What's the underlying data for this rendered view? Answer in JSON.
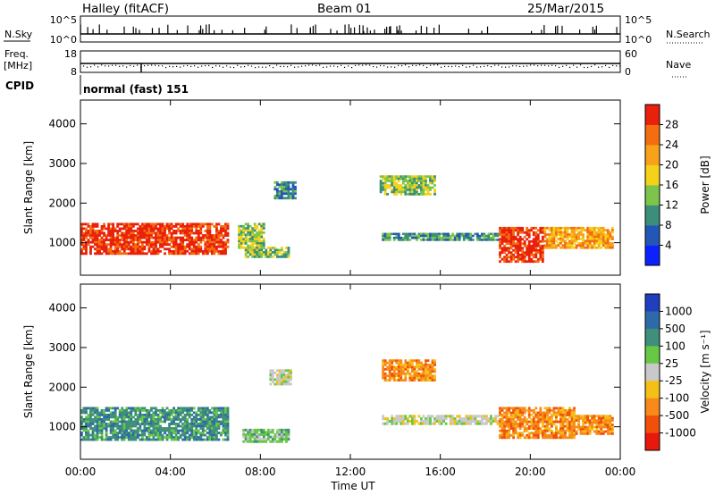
{
  "header": {
    "station": "Halley (fitACF)",
    "beam": "Beam 01",
    "date": "25/Mar/2015"
  },
  "noise_panel": {
    "left_label": "N.Sky",
    "right_label": "N.Search",
    "left_ticks": [
      "10^5",
      "10^0"
    ],
    "right_ticks": [
      "10^5",
      "10^0"
    ]
  },
  "freq_panel": {
    "left_label_1": "Freq.",
    "left_label_2": "[MHz]",
    "left_ticks": [
      "18",
      "8"
    ],
    "right_label": "Nave",
    "right_ticks": [
      "60",
      "0"
    ]
  },
  "cpid": {
    "label": "CPID",
    "value": "normal (fast) 151"
  },
  "x_axis": {
    "title": "Time UT",
    "ticks": [
      "00:00",
      "04:00",
      "08:00",
      "12:00",
      "16:00",
      "20:00",
      "00:00"
    ]
  },
  "y_axis": {
    "title": "Slant Range [km]",
    "ticks": [
      "1000",
      "2000",
      "3000",
      "4000"
    ]
  },
  "power_scale": {
    "title": "Power [dB]",
    "labels": [
      "4",
      "8",
      "12",
      "16",
      "20",
      "24",
      "28"
    ],
    "colors": [
      "#0b22ff",
      "#2456b8",
      "#3b8f7a",
      "#7cc54a",
      "#f5d21a",
      "#f7a21a",
      "#f46e10",
      "#e8200c"
    ]
  },
  "velocity_scale": {
    "title": "Velocity [m s⁻¹]",
    "labels": [
      "1000",
      "500",
      "100",
      "25",
      "-25",
      "-100",
      "-500",
      "-1000"
    ],
    "colors": [
      "#1f3fbf",
      "#2e6aa8",
      "#3f8f7a",
      "#66c845",
      "#c9c9c9",
      "#f4c016",
      "#f78a1a",
      "#f0500c",
      "#e8180c"
    ]
  },
  "chart_data": [
    {
      "type": "heatmap",
      "title": "Power [dB]",
      "xlabel": "Time UT",
      "ylabel": "Slant Range [km]",
      "xlim": [
        0,
        24
      ],
      "ylim": [
        180,
        4600
      ],
      "colorbar": [
        4,
        8,
        12,
        16,
        20,
        24,
        28
      ],
      "regions": [
        {
          "t": [
            0.0,
            6.6
          ],
          "range": [
            700,
            1500
          ],
          "power_db": 28
        },
        {
          "t": [
            7.0,
            8.2
          ],
          "range": [
            850,
            1500
          ],
          "power_db": 12
        },
        {
          "t": [
            7.3,
            9.3
          ],
          "range": [
            620,
            900
          ],
          "power_db": 12
        },
        {
          "t": [
            8.6,
            9.6
          ],
          "range": [
            2100,
            2550
          ],
          "power_db": 8
        },
        {
          "t": [
            13.3,
            15.8
          ],
          "range": [
            2200,
            2700
          ],
          "power_db": 12
        },
        {
          "t": [
            13.4,
            18.6
          ],
          "range": [
            1050,
            1250
          ],
          "power_db": 8
        },
        {
          "t": [
            18.6,
            20.6
          ],
          "range": [
            500,
            1400
          ],
          "power_db": 28
        },
        {
          "t": [
            20.6,
            23.7
          ],
          "range": [
            850,
            1400
          ],
          "power_db": 20
        }
      ]
    },
    {
      "type": "heatmap",
      "title": "Velocity [m s⁻¹]",
      "xlabel": "Time UT",
      "ylabel": "Slant Range [km]",
      "xlim": [
        0,
        24
      ],
      "ylim": [
        180,
        4600
      ],
      "colorbar": [
        1000,
        500,
        100,
        25,
        -25,
        -100,
        -500,
        -1000
      ],
      "regions": [
        {
          "t": [
            0.0,
            6.6
          ],
          "range": [
            650,
            1500
          ],
          "velocity": 100
        },
        {
          "t": [
            7.2,
            9.3
          ],
          "range": [
            600,
            950
          ],
          "velocity": 25
        },
        {
          "t": [
            8.4,
            9.4
          ],
          "range": [
            2050,
            2450
          ],
          "velocity": -25
        },
        {
          "t": [
            13.4,
            15.8
          ],
          "range": [
            2150,
            2700
          ],
          "velocity": -500
        },
        {
          "t": [
            13.4,
            18.6
          ],
          "range": [
            1050,
            1300
          ],
          "velocity": -25
        },
        {
          "t": [
            18.6,
            22.0
          ],
          "range": [
            700,
            1500
          ],
          "velocity": -500
        },
        {
          "t": [
            22.0,
            23.7
          ],
          "range": [
            800,
            1300
          ],
          "velocity": -500
        }
      ]
    }
  ]
}
